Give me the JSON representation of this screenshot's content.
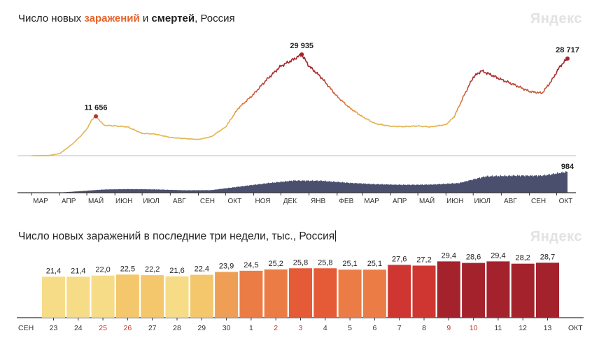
{
  "header": {
    "title_prefix": "Число новых ",
    "title_cases": "заражений",
    "title_mid": " и ",
    "title_deaths": "смертей",
    "title_suffix": ", Россия",
    "brand": "Яндекс"
  },
  "bottom": {
    "title": "Число новых заражений в последние три недели, тыс., Россия",
    "brand": "Яндекс"
  },
  "colors": {
    "cases_low": "#e3b44e",
    "cases_mid": "#d9713e",
    "cases_high": "#a3262a",
    "deaths_fill": "#4a4f6e",
    "axis_line": "#333333",
    "bar_scale": [
      "#f7dc87",
      "#f4c76c",
      "#ef9f55",
      "#ec7c45",
      "#e55a37",
      "#cf3631",
      "#a3222c"
    ],
    "weekend_label": "#c0392b"
  },
  "chart_data": [
    {
      "type": "line",
      "title": "Число новых заражений и смертей, Россия",
      "x_ticks": [
        "МАР",
        "АПР",
        "МАЙ",
        "ИЮН",
        "ИЮЛ",
        "АВГ",
        "СЕН",
        "ОКТ",
        "НОЯ",
        "ДЕК",
        "ЯНВ",
        "ФЕВ",
        "МАР",
        "АПР",
        "МАЙ",
        "ИЮН",
        "ИЮЛ",
        "АВГ",
        "СЕН",
        "ОКТ"
      ],
      "x_range": [
        "2020-03-01",
        "2021-10-13"
      ],
      "series": [
        {
          "key": "cases",
          "name": "заражений",
          "points": [
            [
              "2020-03-01",
              0
            ],
            [
              "2020-03-20",
              50
            ],
            [
              "2020-04-01",
              600
            ],
            [
              "2020-04-15",
              3400
            ],
            [
              "2020-04-25",
              6000
            ],
            [
              "2020-05-01",
              7900
            ],
            [
              "2020-05-07",
              10800
            ],
            [
              "2020-05-11",
              11656
            ],
            [
              "2020-05-20",
              9000
            ],
            [
              "2020-06-01",
              8800
            ],
            [
              "2020-06-15",
              8500
            ],
            [
              "2020-07-01",
              6600
            ],
            [
              "2020-07-15",
              6400
            ],
            [
              "2020-08-01",
              5400
            ],
            [
              "2020-08-15",
              5100
            ],
            [
              "2020-09-01",
              4800
            ],
            [
              "2020-09-15",
              5600
            ],
            [
              "2020-10-01",
              8500
            ],
            [
              "2020-10-15",
              14000
            ],
            [
              "2020-11-01",
              18200
            ],
            [
              "2020-11-15",
              22400
            ],
            [
              "2020-12-01",
              26500
            ],
            [
              "2020-12-15",
              28500
            ],
            [
              "2020-12-24",
              29935
            ],
            [
              "2021-01-01",
              26500
            ],
            [
              "2021-01-15",
              23000
            ],
            [
              "2021-02-01",
              17500
            ],
            [
              "2021-02-15",
              14100
            ],
            [
              "2021-03-01",
              11500
            ],
            [
              "2021-03-15",
              9500
            ],
            [
              "2021-04-01",
              8700
            ],
            [
              "2021-04-15",
              8600
            ],
            [
              "2021-05-01",
              8800
            ],
            [
              "2021-05-15",
              8500
            ],
            [
              "2021-06-01",
              9200
            ],
            [
              "2021-06-10",
              11500
            ],
            [
              "2021-06-20",
              17300
            ],
            [
              "2021-07-01",
              23200
            ],
            [
              "2021-07-10",
              25100
            ],
            [
              "2021-07-20",
              24000
            ],
            [
              "2021-08-01",
              22500
            ],
            [
              "2021-08-15",
              21000
            ],
            [
              "2021-09-01",
              19000
            ],
            [
              "2021-09-15",
              18500
            ],
            [
              "2021-09-25",
              22000
            ],
            [
              "2021-10-05",
              26500
            ],
            [
              "2021-10-13",
              28717
            ]
          ],
          "annotations": [
            {
              "date": "2020-05-11",
              "label": "11 656"
            },
            {
              "date": "2020-12-24",
              "label": "29 935"
            },
            {
              "date": "2021-10-13",
              "label": "28 717"
            }
          ]
        },
        {
          "key": "deaths",
          "name": "смертей",
          "points": [
            [
              "2020-03-01",
              0
            ],
            [
              "2020-04-01",
              5
            ],
            [
              "2020-05-01",
              95
            ],
            [
              "2020-05-20",
              150
            ],
            [
              "2020-06-15",
              170
            ],
            [
              "2020-07-15",
              155
            ],
            [
              "2020-08-15",
              115
            ],
            [
              "2020-09-15",
              120
            ],
            [
              "2020-10-15",
              280
            ],
            [
              "2020-11-15",
              440
            ],
            [
              "2020-12-15",
              570
            ],
            [
              "2021-01-15",
              560
            ],
            [
              "2021-02-15",
              460
            ],
            [
              "2021-03-15",
              400
            ],
            [
              "2021-04-15",
              370
            ],
            [
              "2021-05-15",
              380
            ],
            [
              "2021-06-15",
              450
            ],
            [
              "2021-07-15",
              770
            ],
            [
              "2021-08-15",
              800
            ],
            [
              "2021-09-15",
              800
            ],
            [
              "2021-10-13",
              984
            ]
          ],
          "annotations": [
            {
              "date": "2021-10-13",
              "label": "984"
            }
          ]
        }
      ]
    },
    {
      "type": "bar",
      "title": "Число новых заражений в последние три недели, тыс., Россия",
      "ylim": [
        0,
        31
      ],
      "start_month_label": "СЕН",
      "end_month_label": "ОКТ",
      "categories": [
        "23",
        "24",
        "25",
        "26",
        "27",
        "28",
        "29",
        "30",
        "1",
        "2",
        "3",
        "4",
        "5",
        "6",
        "7",
        "8",
        "9",
        "10",
        "11",
        "12",
        "13"
      ],
      "weekend": [
        false,
        false,
        true,
        true,
        false,
        false,
        false,
        false,
        false,
        true,
        true,
        false,
        false,
        false,
        false,
        false,
        true,
        true,
        false,
        false,
        false
      ],
      "values": [
        21.4,
        21.4,
        22.0,
        22.5,
        22.2,
        21.6,
        22.4,
        23.9,
        24.5,
        25.2,
        25.8,
        25.8,
        25.1,
        25.1,
        27.6,
        27.2,
        29.4,
        28.6,
        29.4,
        28.2,
        28.7
      ],
      "value_labels": [
        "21,4",
        "21,4",
        "22,0",
        "22,5",
        "22,2",
        "21,6",
        "22,4",
        "23,9",
        "24,5",
        "25,2",
        "25,8",
        "25,8",
        "25,1",
        "25,1",
        "27,6",
        "27,2",
        "29,4",
        "28,6",
        "29,4",
        "28,2",
        "28,7"
      ]
    }
  ]
}
